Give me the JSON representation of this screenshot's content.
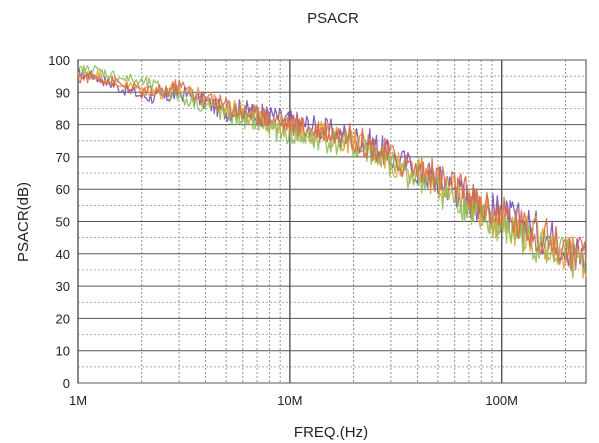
{
  "chart_data": {
    "type": "line",
    "title": "PSACR",
    "xlabel": "FREQ.(Hz)",
    "ylabel": "PSACR(dB)",
    "x_scale": "log",
    "xlim": [
      1000000,
      250000000
    ],
    "ylim": [
      0,
      100
    ],
    "y_ticks": [
      0,
      10,
      20,
      30,
      40,
      50,
      60,
      70,
      80,
      90,
      100
    ],
    "x_ticks": [
      {
        "value": 1000000,
        "label": "1M"
      },
      {
        "value": 10000000,
        "label": "10M"
      },
      {
        "value": 100000000,
        "label": "100M"
      }
    ],
    "grid": true,
    "legend": "none",
    "series": [
      {
        "color": "#7b4fb0",
        "x": [
          1000000,
          1200000,
          1500000,
          2000000,
          2500000,
          3000000,
          4000000,
          5000000,
          6000000,
          7000000,
          8000000,
          10000000,
          12000000,
          15000000,
          20000000,
          25000000,
          30000000,
          40000000,
          50000000,
          60000000,
          70000000,
          80000000,
          100000000,
          120000000,
          150000000,
          200000000,
          250000000
        ],
        "y": [
          96,
          95,
          92,
          89,
          88,
          90,
          87,
          84,
          85,
          83,
          83,
          81,
          80,
          78,
          76,
          74,
          70,
          66,
          63,
          60,
          57,
          55,
          52,
          50,
          47,
          43,
          38
        ]
      },
      {
        "color": "#e8a030",
        "x": [
          1000000,
          1200000,
          1500000,
          2000000,
          2500000,
          3000000,
          4000000,
          5000000,
          6000000,
          7000000,
          8000000,
          10000000,
          12000000,
          15000000,
          20000000,
          25000000,
          30000000,
          40000000,
          50000000,
          60000000,
          70000000,
          80000000,
          100000000,
          120000000,
          150000000,
          200000000,
          250000000
        ],
        "y": [
          95,
          96,
          93,
          91,
          90,
          91,
          88,
          85,
          84,
          82,
          81,
          79,
          78,
          77,
          75,
          72,
          69,
          65,
          62,
          59,
          56,
          53,
          50,
          48,
          45,
          41,
          36
        ]
      },
      {
        "color": "#8fbf5a",
        "x": [
          1000000,
          1200000,
          1500000,
          2000000,
          2500000,
          3000000,
          4000000,
          5000000,
          6000000,
          7000000,
          8000000,
          10000000,
          12000000,
          15000000,
          20000000,
          25000000,
          30000000,
          40000000,
          50000000,
          60000000,
          70000000,
          80000000,
          100000000,
          120000000,
          150000000,
          200000000,
          250000000
        ],
        "y": [
          97,
          97,
          95,
          93,
          91,
          89,
          86,
          83,
          82,
          81,
          79,
          77,
          76,
          75,
          73,
          71,
          67,
          64,
          60,
          57,
          54,
          51,
          48,
          46,
          43,
          39,
          33
        ]
      },
      {
        "color": "#d46a4a",
        "x": [
          1000000,
          1200000,
          1500000,
          2000000,
          2500000,
          3000000,
          4000000,
          5000000,
          6000000,
          7000000,
          8000000,
          10000000,
          12000000,
          15000000,
          20000000,
          25000000,
          30000000,
          40000000,
          50000000,
          60000000,
          70000000,
          80000000,
          100000000,
          120000000,
          150000000,
          200000000,
          250000000
        ],
        "y": [
          94,
          95,
          93,
          90,
          90,
          92,
          88,
          86,
          84,
          83,
          82,
          80,
          79,
          78,
          76,
          73,
          70,
          66,
          64,
          61,
          58,
          55,
          52,
          49,
          46,
          42,
          37
        ]
      }
    ]
  }
}
